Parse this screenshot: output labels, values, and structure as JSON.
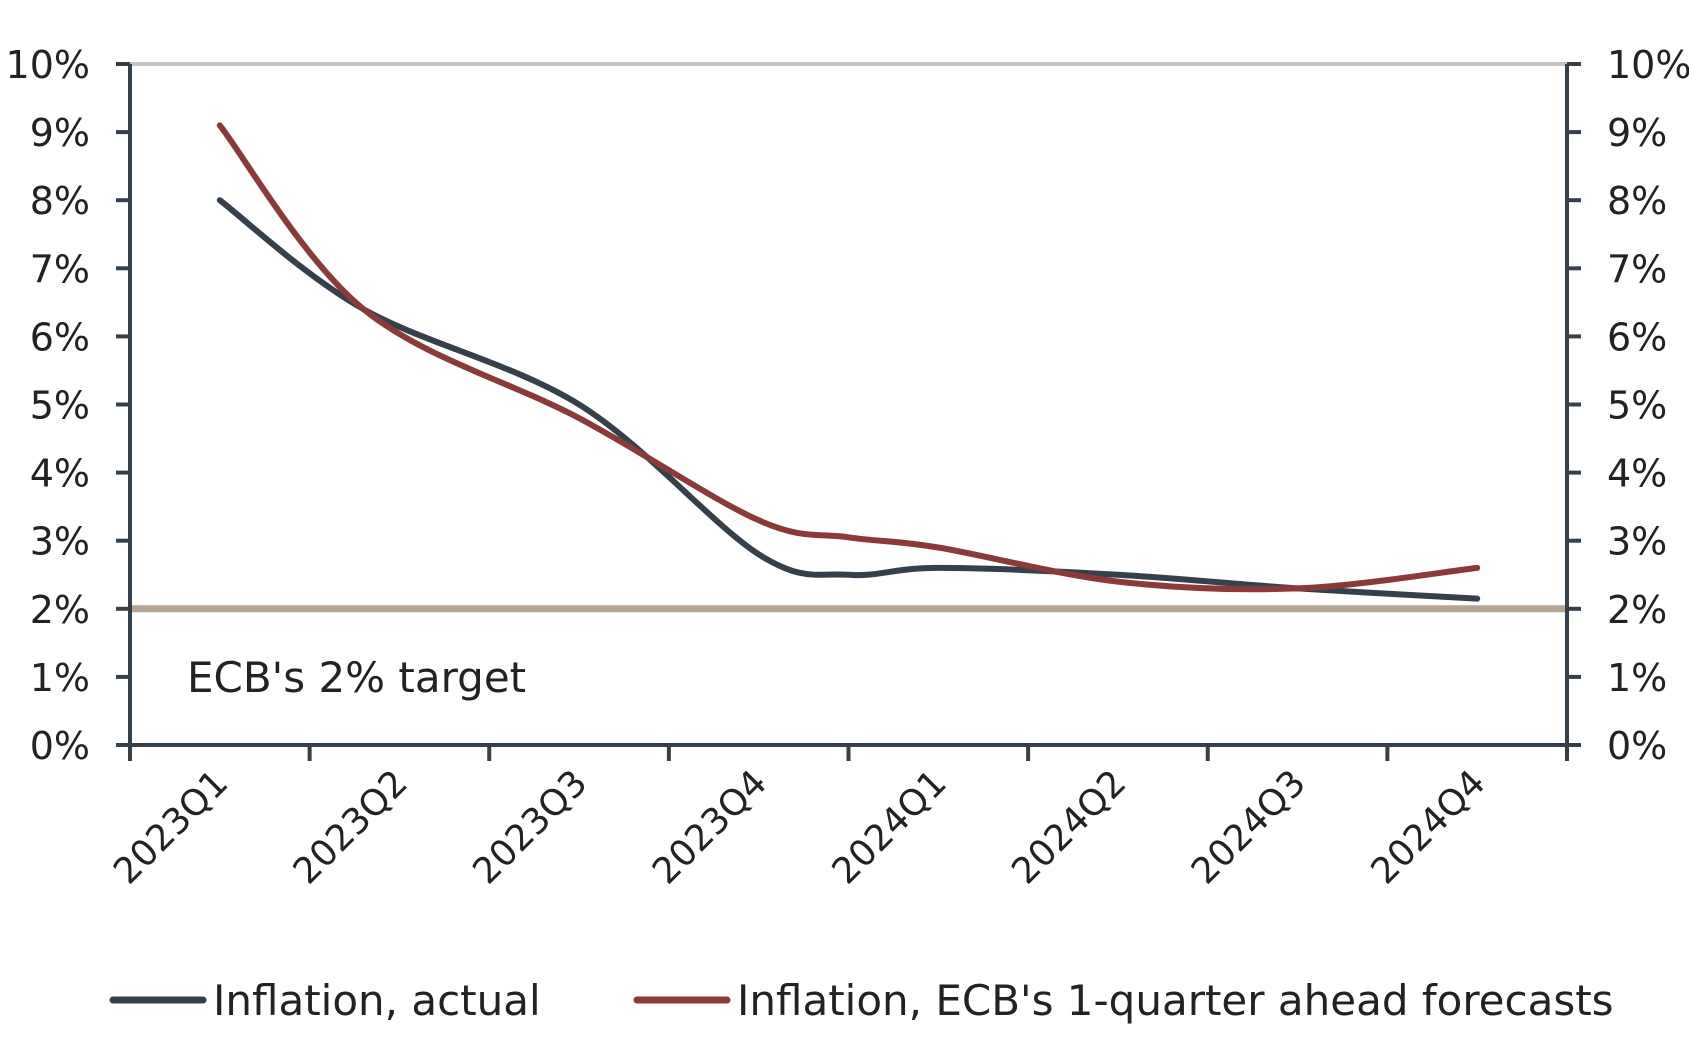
{
  "chart_data": {
    "type": "line",
    "categories": [
      "2023Q1",
      "2023Q2",
      "2023Q3",
      "2023Q4",
      "2024Q1",
      "2024Q2",
      "2024Q3",
      "2024Q4"
    ],
    "x": [
      0.5,
      1.5,
      2.5,
      3.5,
      4.5,
      5.5,
      6.5,
      7.5
    ],
    "ylim": [
      0,
      10
    ],
    "y_ticks": [
      "0%",
      "1%",
      "2%",
      "3%",
      "4%",
      "5%",
      "6%",
      "7%",
      "8%",
      "9%",
      "10%"
    ],
    "y_axis_both_sides": true,
    "grid": false,
    "series": [
      {
        "name": "Inflation, actual",
        "color": "#36404a",
        "x": [
          0.5,
          1.3,
          2.5,
          3.5,
          4.0,
          4.5,
          5.5,
          6.5,
          7.5
        ],
        "values": [
          8.0,
          6.4,
          5.0,
          2.8,
          2.5,
          2.6,
          2.5,
          2.3,
          2.15
        ]
      },
      {
        "name": "Inflation, ECB's 1-quarter ahead forecasts",
        "color": "#8b3a3a",
        "x": [
          0.5,
          1.3,
          2.5,
          3.5,
          4.0,
          4.5,
          5.5,
          6.5,
          7.5
        ],
        "values": [
          9.1,
          6.4,
          4.8,
          3.3,
          3.05,
          2.9,
          2.4,
          2.3,
          2.6
        ]
      }
    ],
    "reference_lines": [
      {
        "value": 2.0,
        "color": "#b5a393",
        "label": "ECB's 2% target"
      },
      {
        "value": 10.0,
        "color": "#c4c4c4",
        "label": ""
      }
    ],
    "legend": "bottom"
  }
}
